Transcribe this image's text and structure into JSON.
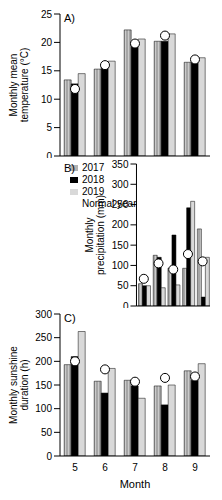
{
  "chart_data": [
    {
      "type": "bar",
      "title": "A)",
      "y_label": "Monthly mean temperature (°C)",
      "categories": [
        "5",
        "6",
        "7",
        "8",
        "9"
      ],
      "ylim": [
        0,
        25
      ],
      "yticks": [
        0,
        5,
        10,
        15,
        20,
        25
      ],
      "tick_labels": "y",
      "series": [
        {
          "name": "2017",
          "color": "#a6a6a6",
          "values": [
            13.4,
            15.3,
            22.2,
            20.2,
            16.5
          ]
        },
        {
          "name": "2018",
          "color": "#000000",
          "values": [
            12.7,
            15.9,
            20.0,
            20.2,
            16.6
          ]
        },
        {
          "name": "2019",
          "color": "#d9d9d9",
          "values": [
            14.5,
            16.7,
            20.6,
            21.5,
            17.3
          ]
        },
        {
          "name": "Normal year",
          "type": "scatter",
          "marker": "circle",
          "color": "#ffffff",
          "values": [
            11.8,
            16.0,
            19.8,
            21.2,
            17.0
          ]
        }
      ]
    },
    {
      "type": "bar",
      "title": "B)",
      "y_label": "Monthly precipitation (mm)",
      "categories": [
        "5",
        "6",
        "7",
        "8",
        "9"
      ],
      "ylim": [
        0,
        350
      ],
      "yticks": [
        0,
        50,
        100,
        150,
        200,
        250,
        300,
        350
      ],
      "tick_labels": "y",
      "legend": "top-left",
      "series": [
        {
          "name": "2017",
          "color": "#a6a6a6",
          "values": [
            55,
            125,
            93,
            93,
            190
          ]
        },
        {
          "name": "2018",
          "color": "#000000",
          "values": [
            50,
            120,
            175,
            242,
            22
          ]
        },
        {
          "name": "2019",
          "color": "#d9d9d9",
          "values": [
            50,
            45,
            52,
            258,
            120
          ]
        },
        {
          "name": "Normal year",
          "type": "scatter",
          "marker": "circle",
          "color": "#ffffff",
          "values": [
            67,
            105,
            90,
            128,
            110
          ]
        }
      ]
    },
    {
      "type": "bar",
      "title": "C)",
      "y_label": "Monthly sunshine duration (h)",
      "x_label": "Month",
      "categories": [
        "5",
        "6",
        "7",
        "8",
        "9"
      ],
      "ylim": [
        0,
        300
      ],
      "yticks": [
        0,
        50,
        100,
        150,
        200,
        250,
        300
      ],
      "series": [
        {
          "name": "2017",
          "color": "#a6a6a6",
          "values": [
            193,
            158,
            160,
            148,
            180
          ]
        },
        {
          "name": "2018",
          "color": "#000000",
          "values": [
            210,
            133,
            148,
            108,
            160
          ]
        },
        {
          "name": "2019",
          "color": "#d9d9d9",
          "values": [
            263,
            185,
            122,
            150,
            195
          ]
        },
        {
          "name": "Normal year",
          "type": "scatter",
          "marker": "circle",
          "color": "#ffffff",
          "values": [
            200,
            183,
            157,
            165,
            168
          ]
        }
      ]
    }
  ]
}
